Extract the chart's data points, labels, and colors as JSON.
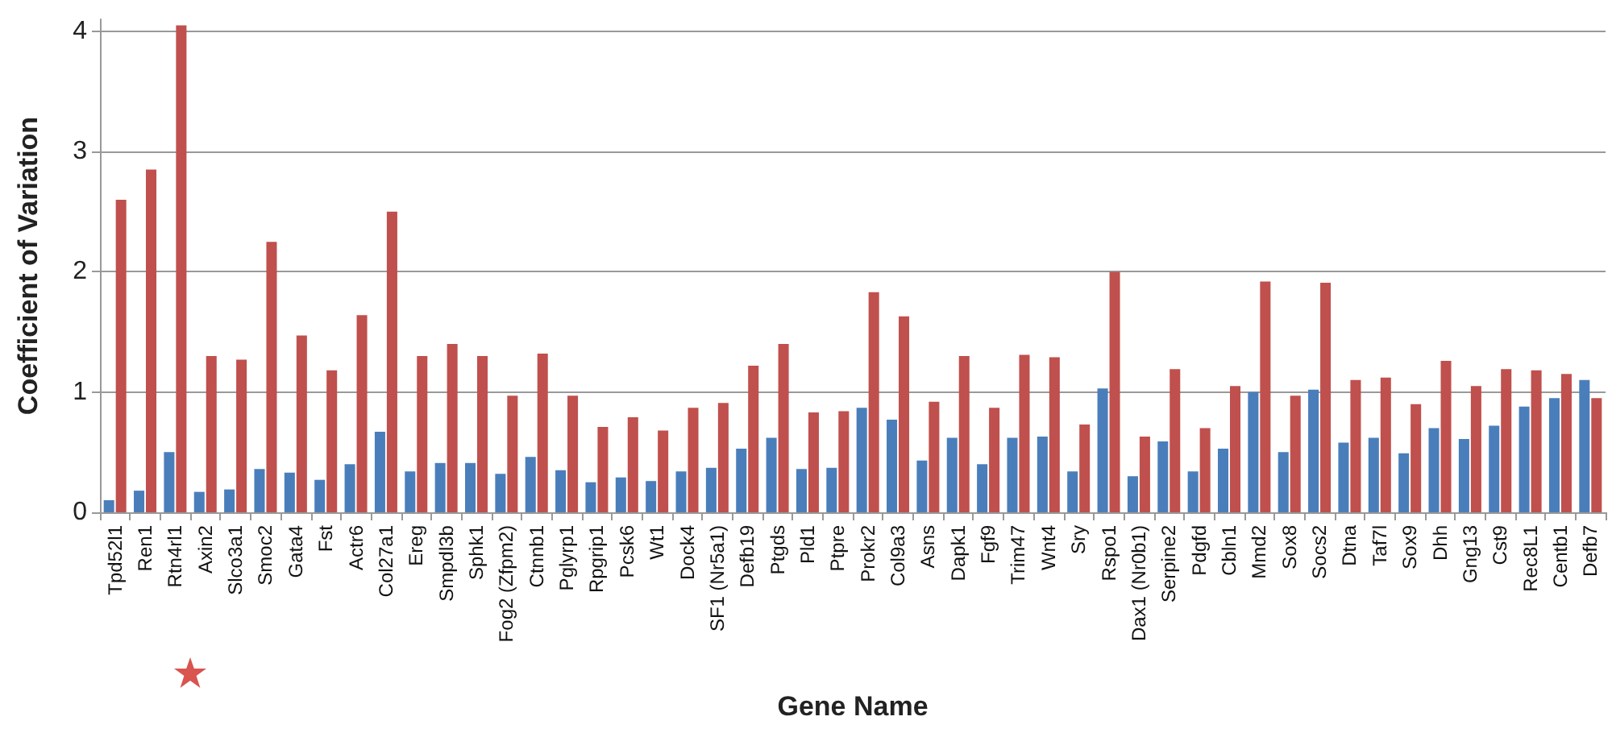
{
  "chart_data": {
    "type": "bar",
    "xlabel": "Gene Name",
    "ylabel": "Coefficient of Variation",
    "categories": [
      "Tpd52l1",
      "Ren1",
      "Rtn4rl1",
      "Axin2",
      "Slco3a1",
      "Smoc2",
      "Gata4",
      "Fst",
      "Actr6",
      "Col27a1",
      "Ereg",
      "Smpdl3b",
      "Sphk1",
      "Fog2 (Zfpm2)",
      "Ctnnb1",
      "Pglyrp1",
      "Rpgrip1",
      "Pcsk6",
      "Wt1",
      "Dock4",
      "SF1 (Nr5a1)",
      "Defb19",
      "Ptgds",
      "Pld1",
      "Ptpre",
      "Prokr2",
      "Col9a3",
      "Asns",
      "Dapk1",
      "Fgf9",
      "Trim47",
      "Wnt4",
      "Sry",
      "Rspo1",
      "Dax1 (Nr0b1)",
      "Serpine2",
      "Pdgfd",
      "Cbln1",
      "Mmd2",
      "Sox8",
      "Socs2",
      "Dtna",
      "Taf7l",
      "Sox9",
      "Dhh",
      "Gng13",
      "Cst9",
      "Rec8L1",
      "Centb1",
      "Defb7"
    ],
    "series": [
      {
        "color": "#4a7ebb",
        "values": [
          0.1,
          0.18,
          0.5,
          0.17,
          0.19,
          0.36,
          0.33,
          0.27,
          0.4,
          0.67,
          0.34,
          0.41,
          0.41,
          0.32,
          0.46,
          0.35,
          0.25,
          0.29,
          0.26,
          0.34,
          0.37,
          0.53,
          0.62,
          0.36,
          0.37,
          0.87,
          0.77,
          0.43,
          0.62,
          0.4,
          0.62,
          0.63,
          0.34,
          1.03,
          0.3,
          0.59,
          0.34,
          0.53,
          1.0,
          0.5,
          1.02,
          0.58,
          0.62,
          0.49,
          0.7,
          0.61,
          0.72,
          0.88,
          0.95,
          1.1
        ]
      },
      {
        "color": "#c0504d",
        "values": [
          2.6,
          2.85,
          4.05,
          1.3,
          1.27,
          2.25,
          1.47,
          1.18,
          1.64,
          2.5,
          1.3,
          1.4,
          1.3,
          0.97,
          1.32,
          0.97,
          0.71,
          0.79,
          0.68,
          0.87,
          0.91,
          1.22,
          1.4,
          0.83,
          0.84,
          1.83,
          1.63,
          0.92,
          1.3,
          0.87,
          1.31,
          1.29,
          0.73,
          2.0,
          0.63,
          1.19,
          0.7,
          1.05,
          1.92,
          0.97,
          1.91,
          1.1,
          1.12,
          0.9,
          1.26,
          1.05,
          1.19,
          1.18,
          1.15,
          0.95
        ]
      }
    ],
    "ylim": [
      0,
      4.1
    ],
    "yticks": [
      0,
      1,
      2,
      3,
      4
    ],
    "grid": "y"
  }
}
